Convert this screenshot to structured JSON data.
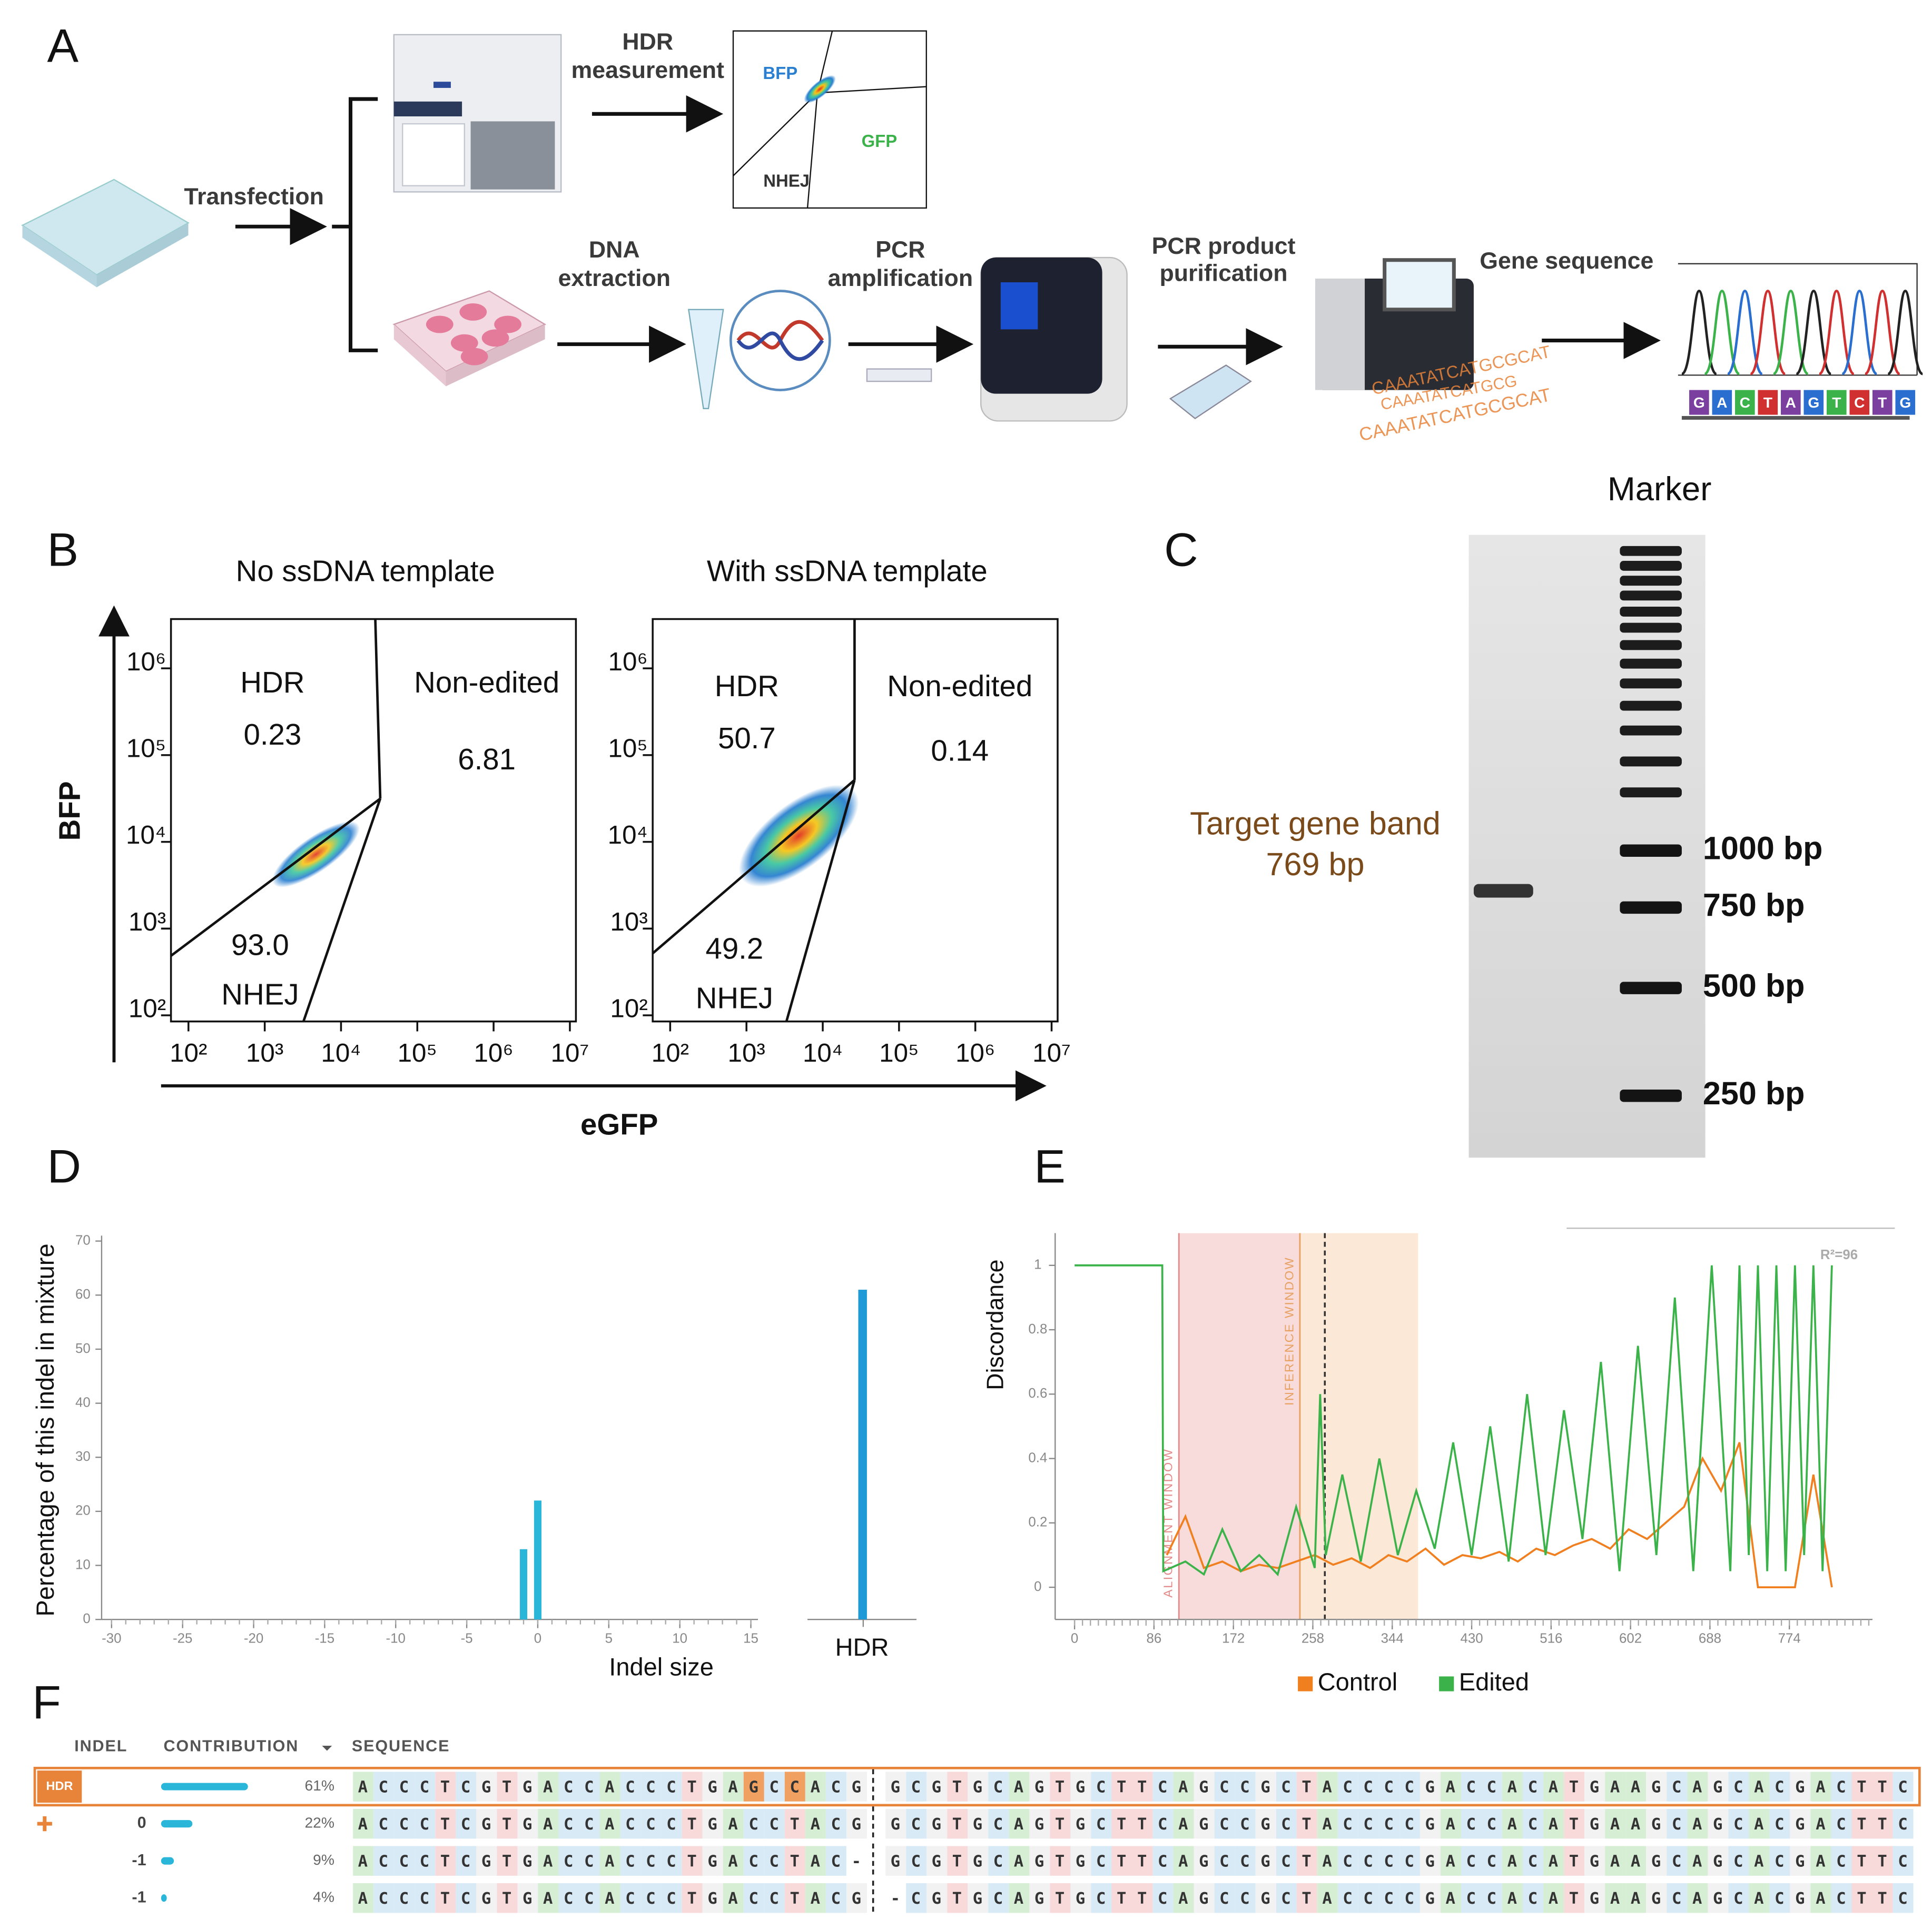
{
  "panel_labels": [
    "A",
    "B",
    "C",
    "D",
    "E",
    "F"
  ],
  "workflow": {
    "transfection": "Transfection",
    "hdr_measurement": [
      "HDR",
      "measurement"
    ],
    "plot_gates": [
      "BFP",
      "GFP",
      "NHEJ"
    ],
    "dna_extraction": [
      "DNA",
      "extraction"
    ],
    "pcr_amplification": [
      "PCR",
      "amplification"
    ],
    "pcr_purification": [
      "PCR product",
      "purification"
    ],
    "gene_sequence": "Gene sequence",
    "sequence_text": [
      "CAAATATCATGCGCAT",
      "CAAATATCATGCG",
      "CAAATATCATGCGCAT"
    ],
    "chromatogram_bases": [
      "G",
      "A",
      "C",
      "T",
      "A",
      "G",
      "T",
      "C",
      "T",
      "G"
    ]
  },
  "flow_cytometry": {
    "x_label": "eGFP",
    "y_label": "BFP",
    "scale": "log",
    "xlim": [
      59,
      12000000
    ],
    "ylim": [
      85,
      3700000
    ],
    "xticks": [
      {
        "value": 100,
        "label": "10²"
      },
      {
        "value": 1000,
        "label": "10³"
      },
      {
        "value": 10000,
        "label": "10⁴"
      },
      {
        "value": 100000,
        "label": "10⁵"
      },
      {
        "value": 1000000,
        "label": "10⁶"
      },
      {
        "value": 10000000,
        "label": "10⁷"
      }
    ],
    "yticks": [
      {
        "value": 100,
        "label": "10²"
      },
      {
        "value": 1000,
        "label": "10³"
      },
      {
        "value": 10000,
        "label": "10⁴"
      },
      {
        "value": 100000,
        "label": "10⁵"
      },
      {
        "value": 1000000,
        "label": "10⁶"
      }
    ],
    "plots": [
      {
        "title": "No ssDNA template",
        "gates": [
          {
            "name": "HDR",
            "value": "0.23"
          },
          {
            "name": "Non-edited",
            "value": "6.81"
          },
          {
            "name": "NHEJ",
            "value": "93.0"
          }
        ]
      },
      {
        "title": "With ssDNA template",
        "gates": [
          {
            "name": "HDR",
            "value": "50.7"
          },
          {
            "name": "Non-edited",
            "value": "0.14"
          },
          {
            "name": "NHEJ",
            "value": "49.2"
          }
        ]
      }
    ]
  },
  "gel": {
    "marker": "Marker",
    "ladder": [
      "1000 bp",
      "750 bp",
      "500 bp",
      "250 bp"
    ],
    "target": [
      "Target gene band",
      "769 bp"
    ]
  },
  "chart_data": [
    {
      "type": "bar",
      "x_label": "Indel size",
      "y_label": "Percentage of this indel in mixture",
      "x": [
        -1,
        0
      ],
      "values": [
        13,
        22
      ],
      "color": "#29b6d9",
      "xlim": [
        -30.7,
        15.5
      ],
      "xticks": [
        -30,
        -25,
        -20,
        -15,
        -10,
        -5,
        0,
        5,
        10,
        15
      ],
      "ylim": [
        0,
        71
      ],
      "yticks": [
        0,
        10,
        20,
        30,
        40,
        50,
        60,
        70
      ],
      "hdr_bar": {
        "category": "HDR",
        "value": 61,
        "color": "#1e9bd7"
      }
    },
    {
      "type": "line",
      "y_label": "Discordance",
      "xlim": [
        -21,
        864
      ],
      "ylim": [
        -0.1,
        1.1
      ],
      "xticks": [
        0,
        86,
        172,
        258,
        344,
        430,
        516,
        602,
        688,
        774
      ],
      "yticks": [
        0,
        0.2,
        0.4,
        0.6,
        0.8,
        1
      ],
      "regions": [
        {
          "label": "ALIGNMENT WINDOW",
          "from": 113,
          "to": 244,
          "color": "#f8dcdc",
          "text_color": "#e48a8a"
        },
        {
          "label": "INFERENCE WINDOW",
          "from": 244,
          "to": 372,
          "color": "#fbe8d6",
          "text_color": "#e8a060"
        }
      ],
      "cut_site": 271,
      "annotation": "R²=96",
      "legend": "bottom",
      "series": [
        {
          "name": "Control",
          "color": "#f07f1f",
          "x": [
            100,
            120,
            140,
            160,
            180,
            200,
            220,
            240,
            260,
            280,
            300,
            320,
            340,
            360,
            380,
            400,
            420,
            440,
            460,
            480,
            500,
            520,
            540,
            560,
            580,
            600,
            620,
            640,
            660,
            680,
            700,
            720,
            740,
            760,
            780,
            800,
            820
          ],
          "values": [
            0.1,
            0.22,
            0.06,
            0.08,
            0.05,
            0.07,
            0.06,
            0.08,
            0.1,
            0.07,
            0.09,
            0.06,
            0.1,
            0.08,
            0.12,
            0.07,
            0.1,
            0.09,
            0.11,
            0.08,
            0.12,
            0.1,
            0.13,
            0.15,
            0.12,
            0.18,
            0.15,
            0.2,
            0.25,
            0.4,
            0.3,
            0.45,
            0,
            0,
            0,
            0.35,
            0
          ]
        },
        {
          "name": "Edited",
          "color": "#3cb34a",
          "x": [
            0,
            95,
            96,
            120,
            140,
            160,
            180,
            200,
            220,
            240,
            260,
            266,
            272,
            290,
            310,
            330,
            350,
            370,
            390,
            410,
            430,
            450,
            470,
            490,
            510,
            530,
            550,
            570,
            590,
            610,
            630,
            650,
            670,
            690,
            710,
            720,
            730,
            740,
            750,
            760,
            770,
            780,
            790,
            800,
            810,
            820
          ],
          "values": [
            1,
            1,
            0.05,
            0.08,
            0.04,
            0.18,
            0.05,
            0.1,
            0.04,
            0.25,
            0.06,
            0.6,
            0.1,
            0.35,
            0.08,
            0.4,
            0.1,
            0.3,
            0.12,
            0.45,
            0.1,
            0.5,
            0.08,
            0.6,
            0.1,
            0.55,
            0.15,
            0.7,
            0.05,
            0.75,
            0.1,
            0.9,
            0.05,
            1,
            0.05,
            1,
            0.1,
            1,
            0.05,
            1,
            0.05,
            1,
            0.1,
            1,
            0.05,
            1
          ]
        }
      ]
    }
  ],
  "table": {
    "headers": [
      "INDEL",
      "CONTRIBUTION",
      "SEQUENCE"
    ],
    "rows": [
      {
        "badge": "HDR",
        "contribution": 61,
        "contribution_label": "61%",
        "sequence": [
          "ACCCTCGTGACCACCCTGAGCCACG",
          "GCGTGCAGTGCTTCAGCCGCTACCCCGACCACATGAAGCAGCACGACTTC"
        ]
      },
      {
        "indel": 0,
        "contribution": 22,
        "contribution_label": "22%",
        "sequence": [
          "ACCCTCGTGACCACCCTGACCTACG",
          "GCGTGCAGTGCTTCAGCCGCTACCCCGACCACATGAAGCAGCACGACTTC"
        ]
      },
      {
        "indel": -1,
        "contribution": 9,
        "contribution_label": "9%",
        "sequence": [
          "ACCCTCGTGACCACCCTGACCTAC-",
          "GCGTGCAGTGCTTCAGCCGCTACCCCGACCACATGAAGCAGCACGACTTC"
        ]
      },
      {
        "indel": -1,
        "contribution": 4,
        "contribution_label": "4%",
        "sequence": [
          "ACCCTCGTGACCACCCTGACCTACG",
          "-CGTGCAGTGCTTCAGCCGCTACCCCGACCACATGAAGCAGCACGACTTC"
        ]
      }
    ]
  }
}
